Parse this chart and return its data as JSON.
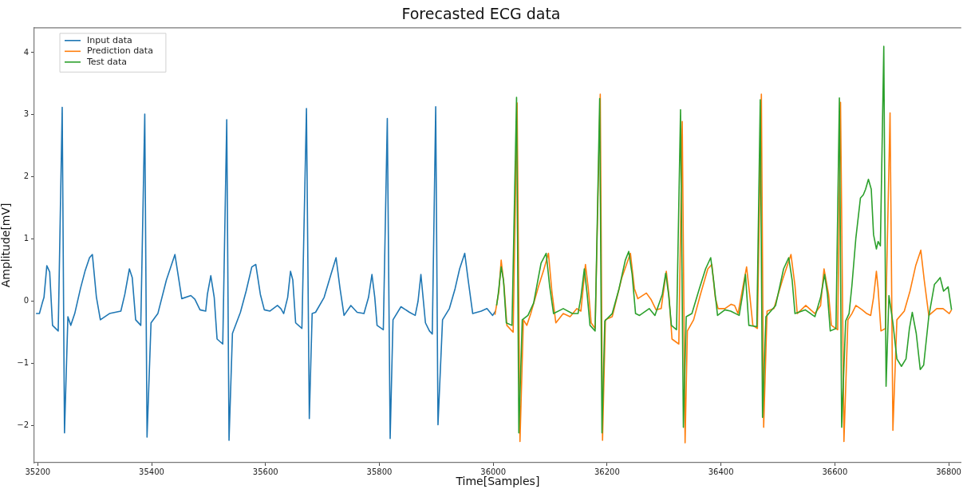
{
  "chart_data": {
    "type": "line",
    "title": "Forecasted ECG data",
    "xlabel": "Time[Samples]",
    "ylabel": "Amplitude[mV]",
    "xlim": [
      35194,
      36822
    ],
    "xticks": [
      35200,
      35400,
      35600,
      35800,
      36000,
      36200,
      36400,
      36600,
      36800
    ],
    "ylim": [
      -2.6,
      4.4
    ],
    "yticks": [
      -2,
      -1,
      0,
      1,
      2,
      3,
      4
    ],
    "legend": "top left",
    "marker": "none",
    "line_style": "solid",
    "series": [
      {
        "name": "Input data",
        "color": "#1f77b4",
        "x": [
          35197,
          35203,
          35208,
          35211,
          35216,
          35221,
          35226,
          35236,
          35243,
          35247,
          35253,
          35258,
          35265,
          35275,
          35283,
          35291,
          35296,
          35303,
          35310,
          35326,
          35346,
          35353,
          35361,
          35366,
          35372,
          35381,
          35388,
          35392,
          35399,
          35411,
          35426,
          35441,
          35448,
          35453,
          35469,
          35476,
          35485,
          35495,
          35498,
          35504,
          35510,
          35515,
          35525,
          35532,
          35536,
          35542,
          35556,
          35566,
          35576,
          35583,
          35591,
          35598,
          35608,
          35621,
          35627,
          35632,
          35639,
          35644,
          35648,
          35653,
          35658,
          35664,
          35672,
          35677,
          35682,
          35688,
          35703,
          35715,
          35724,
          35731,
          35738,
          35750,
          35761,
          35773,
          35781,
          35787,
          35792,
          35796,
          35807,
          35814,
          35819,
          35824,
          35838,
          35853,
          35863,
          35868,
          35873,
          35881,
          35888,
          35893,
          35899,
          35903,
          35911,
          35923,
          35933,
          35941,
          35950,
          35956,
          35964,
          35979,
          35989,
          35999,
          36004
        ],
        "values": [
          -0.2,
          -0.2,
          -0.03,
          0.06,
          0.57,
          0.47,
          -0.39,
          -0.48,
          3.12,
          -2.12,
          -0.25,
          -0.39,
          -0.2,
          0.2,
          0.48,
          0.7,
          0.75,
          0.07,
          -0.3,
          -0.2,
          -0.16,
          0.11,
          0.52,
          0.38,
          -0.3,
          -0.39,
          3.01,
          -2.19,
          -0.35,
          -0.2,
          0.34,
          0.75,
          0.34,
          0.04,
          0.09,
          0.03,
          -0.14,
          -0.16,
          0.11,
          0.41,
          0.06,
          -0.61,
          -0.69,
          2.92,
          -2.24,
          -0.52,
          -0.18,
          0.16,
          0.55,
          0.59,
          0.11,
          -0.14,
          -0.16,
          -0.07,
          -0.12,
          -0.2,
          0.06,
          0.48,
          0.34,
          -0.35,
          -0.39,
          -0.44,
          3.1,
          -1.89,
          -0.2,
          -0.18,
          0.06,
          0.43,
          0.7,
          0.2,
          -0.23,
          -0.07,
          -0.18,
          -0.2,
          0.06,
          0.43,
          0.06,
          -0.39,
          -0.46,
          2.94,
          -2.21,
          -0.3,
          -0.09,
          -0.18,
          -0.23,
          0.0,
          0.43,
          -0.35,
          -0.48,
          -0.53,
          3.13,
          -1.99,
          -0.3,
          -0.12,
          0.2,
          0.52,
          0.77,
          0.34,
          -0.2,
          -0.16,
          -0.12,
          -0.23,
          -0.16
        ]
      },
      {
        "name": "Prediction data",
        "color": "#ff7f0e",
        "x": [
          36003,
          36010,
          36014,
          36019,
          36024,
          36035,
          36042,
          36047,
          36053,
          36059,
          36066,
          36080,
          36088,
          36097,
          36103,
          36110,
          36123,
          36135,
          36147,
          36154,
          36162,
          36167,
          36172,
          36179,
          36188,
          36192,
          36197,
          36209,
          36226,
          36241,
          36248,
          36254,
          36269,
          36277,
          36286,
          36295,
          36304,
          36309,
          36314,
          36326,
          36332,
          36337,
          36341,
          36352,
          36364,
          36377,
          36384,
          36390,
          36395,
          36407,
          36418,
          36424,
          36430,
          36445,
          36451,
          36456,
          36464,
          36471,
          36475,
          36481,
          36493,
          36508,
          36523,
          36530,
          36534,
          36549,
          36565,
          36575,
          36581,
          36589,
          36594,
          36605,
          36610,
          36616,
          36623,
          36630,
          36637,
          36648,
          36656,
          36663,
          36668,
          36673,
          36676,
          36681,
          36689,
          36697,
          36702,
          36709,
          36722,
          36732,
          36742,
          36751,
          36757,
          36765,
          36779,
          36790,
          36801,
          36805
        ],
        "values": [
          -0.22,
          0.16,
          0.66,
          0.25,
          -0.39,
          -0.5,
          3.19,
          -2.26,
          -0.3,
          -0.39,
          -0.2,
          0.25,
          0.48,
          0.77,
          0.16,
          -0.35,
          -0.2,
          -0.25,
          -0.12,
          -0.16,
          0.59,
          0.2,
          -0.35,
          -0.44,
          3.33,
          -2.24,
          -0.3,
          -0.25,
          0.38,
          0.77,
          0.2,
          0.04,
          0.13,
          0.03,
          -0.14,
          -0.12,
          0.48,
          0.06,
          -0.61,
          -0.69,
          2.89,
          -2.28,
          -0.48,
          -0.3,
          0.11,
          0.52,
          0.59,
          0.06,
          -0.12,
          -0.12,
          -0.05,
          -0.07,
          -0.2,
          0.55,
          0.06,
          -0.39,
          -0.44,
          3.33,
          -2.03,
          -0.16,
          -0.12,
          0.34,
          0.75,
          0.25,
          -0.2,
          -0.07,
          -0.2,
          -0.07,
          0.52,
          0.11,
          -0.39,
          -0.46,
          3.2,
          -2.26,
          -0.3,
          -0.2,
          -0.07,
          -0.14,
          -0.2,
          -0.23,
          0.06,
          0.48,
          0.2,
          -0.48,
          -0.44,
          3.03,
          -2.08,
          -0.3,
          -0.16,
          0.16,
          0.57,
          0.82,
          0.34,
          -0.23,
          -0.12,
          -0.12,
          -0.2,
          -0.14
        ]
      },
      {
        "name": "Test data",
        "color": "#2ca02c",
        "x": [
          36006,
          36009,
          36014,
          36018,
          36023,
          36033,
          36041,
          36045,
          36051,
          36061,
          36071,
          36084,
          36093,
          36099,
          36106,
          36123,
          36139,
          36149,
          36154,
          36160,
          36165,
          36170,
          36179,
          36187,
          36191,
          36196,
          36209,
          36221,
          36232,
          36238,
          36244,
          36250,
          36257,
          36274,
          36284,
          36297,
          36303,
          36308,
          36313,
          36322,
          36329,
          36334,
          36339,
          36349,
          36362,
          36373,
          36382,
          36387,
          36394,
          36407,
          36417,
          36432,
          36439,
          36443,
          36449,
          36463,
          36469,
          36473,
          36479,
          36496,
          36510,
          36519,
          36525,
          36530,
          36548,
          36565,
          36575,
          36582,
          36587,
          36592,
          36602,
          36608,
          36612,
          36619,
          36625,
          36630,
          36637,
          36645,
          36650,
          36654,
          36659,
          36664,
          36668,
          36673,
          36676,
          36680,
          36686,
          36690,
          36695,
          36702,
          36709,
          36717,
          36725,
          36731,
          36736,
          36743,
          36750,
          36756,
          36765,
          36775,
          36780,
          36785,
          36791,
          36799,
          36805
        ],
        "values": [
          -0.07,
          0.13,
          0.55,
          0.34,
          -0.35,
          -0.39,
          3.28,
          -2.12,
          -0.3,
          -0.23,
          -0.03,
          0.61,
          0.77,
          0.25,
          -0.2,
          -0.12,
          -0.2,
          -0.2,
          0.06,
          0.52,
          0.11,
          -0.39,
          -0.48,
          3.26,
          -2.12,
          -0.32,
          -0.2,
          0.2,
          0.66,
          0.8,
          0.43,
          -0.2,
          -0.23,
          -0.12,
          -0.23,
          0.11,
          0.45,
          0.11,
          -0.39,
          -0.46,
          3.08,
          -2.03,
          -0.25,
          -0.2,
          0.2,
          0.52,
          0.7,
          0.34,
          -0.23,
          -0.14,
          -0.16,
          -0.23,
          0.16,
          0.43,
          -0.39,
          -0.41,
          3.24,
          -1.87,
          -0.25,
          -0.07,
          0.52,
          0.7,
          0.34,
          -0.2,
          -0.14,
          -0.25,
          0.06,
          0.43,
          0.11,
          -0.48,
          -0.44,
          3.27,
          -2.03,
          -0.32,
          -0.2,
          0.25,
          1.02,
          1.66,
          1.71,
          1.8,
          1.96,
          1.8,
          1.07,
          0.84,
          0.96,
          0.89,
          4.1,
          -1.37,
          0.09,
          -0.35,
          -0.93,
          -1.05,
          -0.93,
          -0.44,
          -0.18,
          -0.52,
          -1.1,
          -1.03,
          -0.25,
          0.27,
          0.32,
          0.38,
          0.16,
          0.23,
          -0.14
        ]
      }
    ]
  }
}
